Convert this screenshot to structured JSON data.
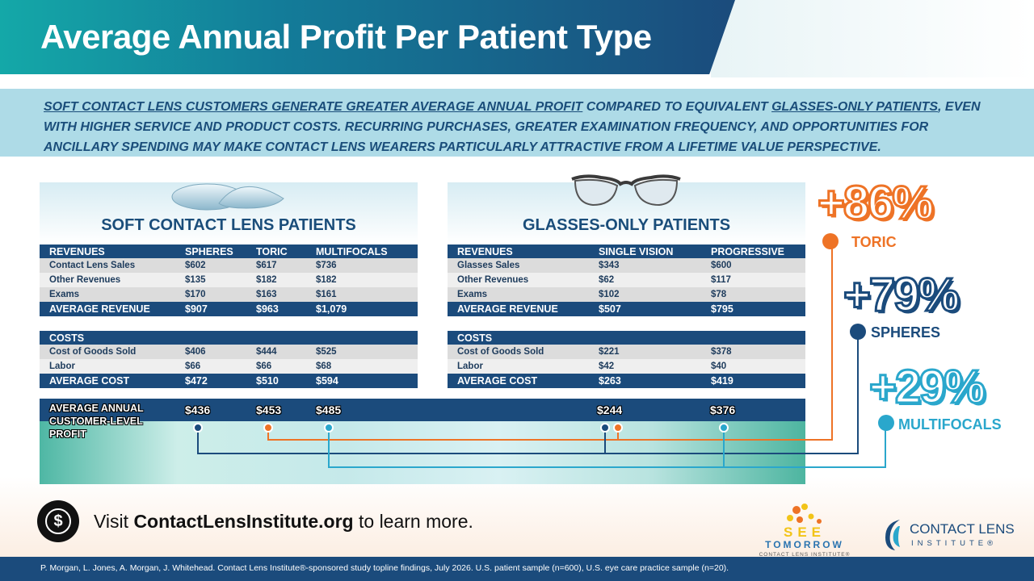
{
  "title": "Average Annual Profit Per Patient Type",
  "intro": {
    "part1": "SOFT CONTACT LENS CUSTOMERS GENERATE GREATER AVERAGE ANNUAL PROFIT",
    "part2": " COMPARED TO EQUIVALENT ",
    "part3": "GLASSES-ONLY PATIENTS",
    "part4": ", EVEN WITH HIGHER SERVICE AND PRODUCT COSTS. RECURRING PURCHASES, GREATER EXAMINATION FREQUENCY, AND OPPORTUNITIES FOR ANCILLARY SPENDING MAY MAKE CONTACT LENS WEARERS PARTICULARLY ATTRACTIVE FROM A LIFETIME VALUE PERSPECTIVE."
  },
  "contacts": {
    "title": "SOFT CONTACT LENS PATIENTS",
    "revenue_header": [
      "REVENUES",
      "SPHERES",
      "TORIC",
      "MULTIFOCALS"
    ],
    "revenue_rows": [
      [
        "Contact Lens Sales",
        "$602",
        "$617",
        "$736"
      ],
      [
        "Other Revenues",
        "$135",
        "$182",
        "$182"
      ],
      [
        "Exams",
        "$170",
        "$163",
        "$161"
      ]
    ],
    "revenue_total": [
      "AVERAGE REVENUE",
      "$907",
      "$963",
      "$1,079"
    ],
    "cost_header": "COSTS",
    "cost_rows": [
      [
        "Cost of Goods Sold",
        "$406",
        "$444",
        "$525"
      ],
      [
        "Labor",
        "$66",
        "$66",
        "$68"
      ]
    ],
    "cost_total": [
      "AVERAGE COST",
      "$472",
      "$510",
      "$594"
    ]
  },
  "glasses": {
    "title": "GLASSES-ONLY PATIENTS",
    "revenue_header": [
      "REVENUES",
      "SINGLE VISION",
      "PROGRESSIVE"
    ],
    "revenue_rows": [
      [
        "Glasses Sales",
        "$343",
        "$600"
      ],
      [
        "Other Revenues",
        "$62",
        "$117"
      ],
      [
        "Exams",
        "$102",
        "$78"
      ]
    ],
    "revenue_total": [
      "AVERAGE REVENUE",
      "$507",
      "$795"
    ],
    "cost_header": "COSTS",
    "cost_rows": [
      [
        "Cost of Goods Sold",
        "$221",
        "$378"
      ],
      [
        "Labor",
        "$42",
        "$40"
      ]
    ],
    "cost_total": [
      "AVERAGE COST",
      "$263",
      "$419"
    ]
  },
  "profit": {
    "label": "AVERAGE  ANNUAL CUSTOMER-LEVEL PROFIT",
    "spheres": "$436",
    "toric": "$453",
    "multifocals": "$485",
    "single_vision": "$244",
    "progressive": "$376"
  },
  "comparisons": [
    {
      "value": "+86%",
      "label": "TORIC",
      "color": "#ee7326"
    },
    {
      "value": "+79%",
      "label": "SPHERES",
      "color": "#1b4b7c"
    },
    {
      "value": "+29%",
      "label": "MULTIFOCALS",
      "color": "#2aa7cc"
    }
  ],
  "cta": {
    "prefix": "Visit ",
    "site": "ContactLensInstitute.org",
    "suffix": " to learn more."
  },
  "logos": {
    "see_word": "SEE",
    "tomorrow_word": "TOMORROW",
    "see_sub": "CONTACT LENS INSTITUTE®",
    "cli_line1": "CONTACT LENS",
    "cli_line2": "INSTITUTE®"
  },
  "footnote": "P. Morgan, L. Jones, A. Morgan, J. Whitehead. Contact Lens Institute®-sponsored study topline findings, July 2026. U.S. patient sample (n=600), U.S. eye care practice sample (n=20)."
}
